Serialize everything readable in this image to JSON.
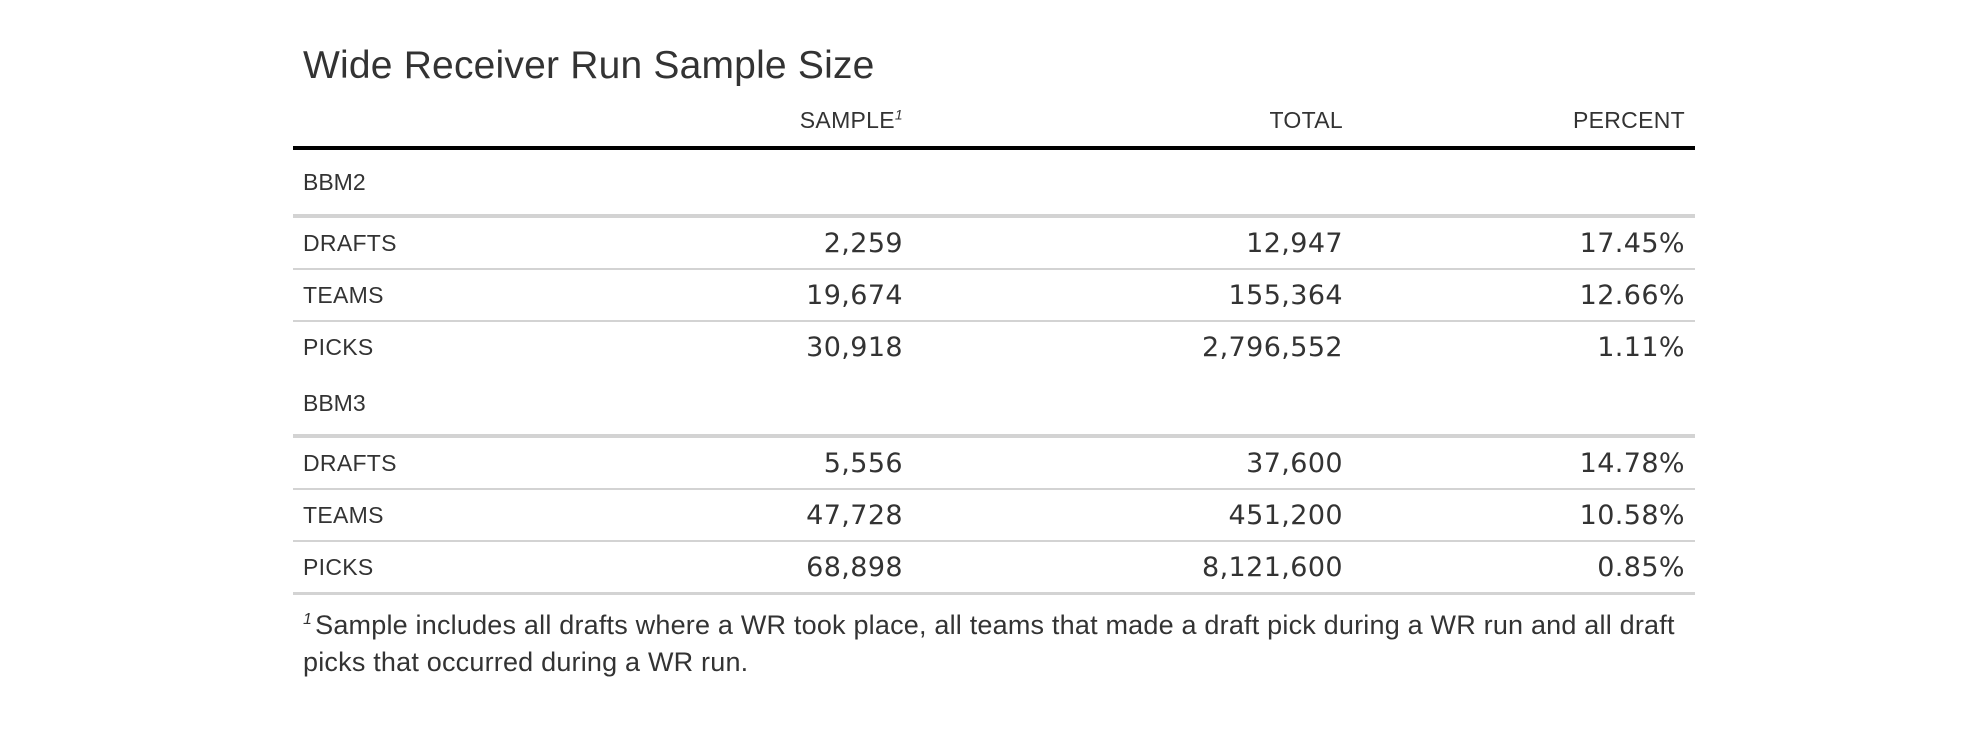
{
  "title": "Wide Receiver Run Sample Size",
  "columns": {
    "label": "",
    "sample": "SAMPLE",
    "sample_footnote_mark": "1",
    "total": "TOTAL",
    "percent": "PERCENT"
  },
  "groups": [
    {
      "name": "BBM2",
      "rows": [
        {
          "label": "DRAFTS",
          "sample": "2,259",
          "total": "12,947",
          "percent": "17.45%"
        },
        {
          "label": "TEAMS",
          "sample": "19,674",
          "total": "155,364",
          "percent": "12.66%"
        },
        {
          "label": "PICKS",
          "sample": "30,918",
          "total": "2,796,552",
          "percent": "1.11%"
        }
      ]
    },
    {
      "name": "BBM3",
      "rows": [
        {
          "label": "DRAFTS",
          "sample": "5,556",
          "total": "37,600",
          "percent": "14.78%"
        },
        {
          "label": "TEAMS",
          "sample": "47,728",
          "total": "451,200",
          "percent": "10.58%"
        },
        {
          "label": "PICKS",
          "sample": "68,898",
          "total": "8,121,600",
          "percent": "0.85%"
        }
      ]
    }
  ],
  "footnote": {
    "mark": "1",
    "text": "Sample includes all drafts where a WR took place, all teams that made a draft pick during a WR run and all draft picks that occurred during a WR run."
  }
}
